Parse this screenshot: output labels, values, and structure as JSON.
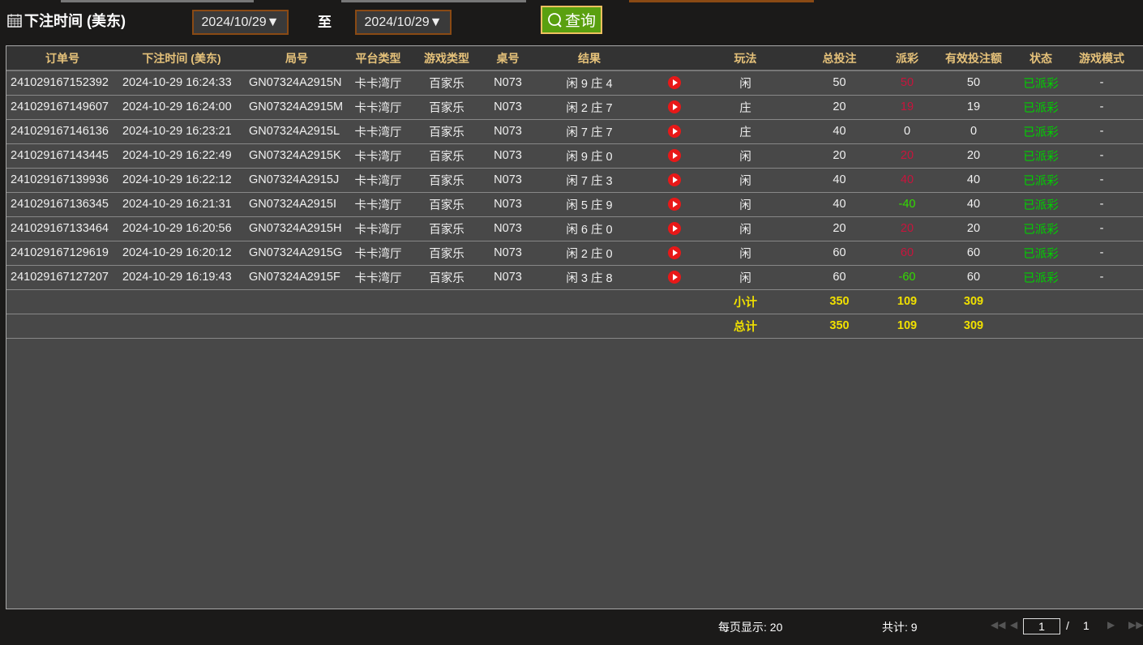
{
  "filter": {
    "label": "下注时间 (美东)",
    "start_date": "2024/10/29▼",
    "to": "至",
    "end_date": "2024/10/29▼",
    "query": "查询"
  },
  "columns": [
    "订单号",
    "下注时间 (美东)",
    "局号",
    "平台类型",
    "游戏类型",
    "桌号",
    "结果",
    "",
    "玩法",
    "总投注",
    "派彩",
    "有效投注额",
    "状态",
    "游戏模式"
  ],
  "rows": [
    {
      "order": "241029167152392",
      "time": "2024-10-29 16:24:33",
      "round": "GN07324A2915N",
      "platform": "卡卡湾厅",
      "game": "百家乐",
      "table": "N073",
      "result": "闲 9 庄 4",
      "play": "闲",
      "bet": "50",
      "payout": "50",
      "payout_color": "red",
      "valid": "50",
      "status": "已派彩",
      "mode": "-"
    },
    {
      "order": "241029167149607",
      "time": "2024-10-29 16:24:00",
      "round": "GN07324A2915M",
      "platform": "卡卡湾厅",
      "game": "百家乐",
      "table": "N073",
      "result": "闲 2 庄 7",
      "play": "庄",
      "bet": "20",
      "payout": "19",
      "payout_color": "red",
      "valid": "19",
      "status": "已派彩",
      "mode": "-"
    },
    {
      "order": "241029167146136",
      "time": "2024-10-29 16:23:21",
      "round": "GN07324A2915L",
      "platform": "卡卡湾厅",
      "game": "百家乐",
      "table": "N073",
      "result": "闲 7 庄 7",
      "play": "庄",
      "bet": "40",
      "payout": "0",
      "payout_color": "white",
      "valid": "0",
      "status": "已派彩",
      "mode": "-"
    },
    {
      "order": "241029167143445",
      "time": "2024-10-29 16:22:49",
      "round": "GN07324A2915K",
      "platform": "卡卡湾厅",
      "game": "百家乐",
      "table": "N073",
      "result": "闲 9 庄 0",
      "play": "闲",
      "bet": "20",
      "payout": "20",
      "payout_color": "red",
      "valid": "20",
      "status": "已派彩",
      "mode": "-"
    },
    {
      "order": "241029167139936",
      "time": "2024-10-29 16:22:12",
      "round": "GN07324A2915J",
      "platform": "卡卡湾厅",
      "game": "百家乐",
      "table": "N073",
      "result": "闲 7 庄 3",
      "play": "闲",
      "bet": "40",
      "payout": "40",
      "payout_color": "red",
      "valid": "40",
      "status": "已派彩",
      "mode": "-"
    },
    {
      "order": "241029167136345",
      "time": "2024-10-29 16:21:31",
      "round": "GN07324A2915I",
      "platform": "卡卡湾厅",
      "game": "百家乐",
      "table": "N073",
      "result": "闲 5 庄 9",
      "play": "闲",
      "bet": "40",
      "payout": "-40",
      "payout_color": "green",
      "valid": "40",
      "status": "已派彩",
      "mode": "-"
    },
    {
      "order": "241029167133464",
      "time": "2024-10-29 16:20:56",
      "round": "GN07324A2915H",
      "platform": "卡卡湾厅",
      "game": "百家乐",
      "table": "N073",
      "result": "闲 6 庄 0",
      "play": "闲",
      "bet": "20",
      "payout": "20",
      "payout_color": "red",
      "valid": "20",
      "status": "已派彩",
      "mode": "-"
    },
    {
      "order": "241029167129619",
      "time": "2024-10-29 16:20:12",
      "round": "GN07324A2915G",
      "platform": "卡卡湾厅",
      "game": "百家乐",
      "table": "N073",
      "result": "闲 2 庄 0",
      "play": "闲",
      "bet": "60",
      "payout": "60",
      "payout_color": "red",
      "valid": "60",
      "status": "已派彩",
      "mode": "-"
    },
    {
      "order": "241029167127207",
      "time": "2024-10-29 16:19:43",
      "round": "GN07324A2915F",
      "platform": "卡卡湾厅",
      "game": "百家乐",
      "table": "N073",
      "result": "闲 3 庄 8",
      "play": "闲",
      "bet": "60",
      "payout": "-60",
      "payout_color": "green",
      "valid": "60",
      "status": "已派彩",
      "mode": "-"
    }
  ],
  "subtotal": {
    "label": "小计",
    "bet": "350",
    "payout": "109",
    "valid": "309"
  },
  "total": {
    "label": "总计",
    "bet": "350",
    "payout": "109",
    "valid": "309"
  },
  "footer": {
    "per_page": "每页显示: 20",
    "count": "共计: 9",
    "page": "1",
    "sep": "/",
    "pages": "1"
  },
  "colors": {
    "header_text": "#e6c27a",
    "payout_red": "#c8143c",
    "payout_green": "#33dd00",
    "status": "#00d000",
    "sum": "#f0e000",
    "query_bg": "#5aa010"
  }
}
